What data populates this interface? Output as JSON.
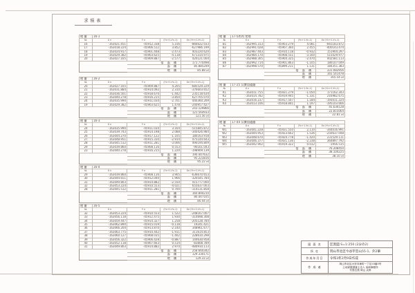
{
  "doc": {
    "title": "求積表"
  },
  "headers": {
    "lot": "地 番",
    "no": "№",
    "x": "X n",
    "y": "Y n",
    "diff": "(Yn+1-Yn-1)",
    "product": "Xn·(Yn+1-Yn-1)"
  },
  "summary_labels": {
    "double_area": "倍 面 積",
    "area": "面 積",
    "lot_area": "地 積"
  },
  "tables": [
    {
      "lot": "16-1",
      "rows": [
        [
          "16",
          "-163021.451",
          "-45912.338",
          "5.316",
          "-866622.033"
        ],
        [
          "17",
          "-163018.224",
          "-45906.512",
          "3.852",
          "-627986.199"
        ],
        [
          "18",
          "-163024.917",
          "-45901.448",
          "-2.473",
          "403220.620"
        ],
        [
          "19",
          "-163029.382",
          "-45903.625",
          "-4.118",
          "671314.975"
        ],
        [
          "20",
          "-163027.165",
          "-45909.887",
          "-2.577",
          "420121.004"
        ]
      ],
      "double_area": "171.770498",
      "area": "85.885249",
      "lot_area": "85.88 ㎡"
    },
    {
      "lot": "16-2",
      "rows": [
        [
          "20",
          "-163027.165",
          "-45909.887",
          "4.205",
          "-685529.229"
        ],
        [
          "21",
          "-163031.884",
          "-45914.092",
          "2.310",
          "-376603.652"
        ],
        [
          "22",
          "-163036.501",
          "-45918.670",
          "-1.442",
          "235118.634"
        ],
        [
          "23",
          "-163040.278",
          "-45916.215",
          "-3.850",
          "627705.070"
        ],
        [
          "24",
          "-163035.990",
          "-45911.034",
          "-2.701",
          "440360.209"
        ],
        [
          "19",
          "-163029.382",
          "-45903.625",
          "1.478",
          "-240957.427"
        ]
      ],
      "double_area": "243.129866",
      "area": "121.564933",
      "lot_area": "121.56 ㎡"
    },
    {
      "lot": "16-3",
      "rows": [
        [
          "24",
          "-163035.990",
          "-45911.034",
          "3.164",
          "-515845.872"
        ],
        [
          "25",
          "-163039.743",
          "-45914.198",
          "2.088",
          "-340426.984"
        ],
        [
          "26",
          "-163044.270",
          "-45917.122",
          "-1.105",
          "180163.918"
        ],
        [
          "27",
          "-163048.951",
          "-45915.310",
          "-2.914",
          "475144.643"
        ],
        [
          "28",
          "-163045.512",
          "-45911.281",
          "-3.006",
          "490194.809"
        ],
        [
          "29",
          "-163039.860",
          "-45908.116",
          "0.553",
          "-90161.043"
        ],
        [
          "23",
          "-163040.278",
          "-45916.215",
          "1.220",
          "-198909.139"
        ]
      ],
      "double_area": "190.447632",
      "area": "95.223816",
      "lot_area": "95.22 ㎡"
    },
    {
      "lot": "16-4",
      "rows": [
        [
          "29",
          "-163039.860",
          "-45908.116",
          "3.905",
          "-636670.653"
        ],
        [
          "30",
          "-163044.651",
          "-45912.040",
          "1.966",
          "-320545.784"
        ],
        [
          "31",
          "-163049.803",
          "-45914.882",
          "-2.550",
          "415777.000"
        ],
        [
          "32",
          "-163053.224",
          "-45910.553",
          "-4.021",
          "655637.003"
        ],
        [
          "28",
          "-163045.512",
          "-45911.281",
          "0.700",
          "-114131.858"
        ]
      ],
      "double_area": "160.894210",
      "area": "80.447105",
      "lot_area": "80.44 ㎡"
    },
    {
      "lot": "16-5",
      "rows": [
        [
          "32",
          "-163053.224",
          "-45910.553",
          "1.522",
          "-248167.007"
        ],
        [
          "33",
          "-163056.118",
          "-45912.475",
          "1.930",
          "-314698.308"
        ],
        [
          "34",
          "-163059.447",
          "-45914.327",
          "1.258",
          "-205128.784"
        ],
        [
          "35",
          "-163062.890",
          "-45915.019",
          "-0.118",
          "19241.421"
        ],
        [
          "36",
          "-163066.204",
          "-45913.870",
          "-2.140",
          "348961.677"
        ],
        [
          "37",
          "-163063.775",
          "-45910.442",
          "-1.911",
          "311614.853"
        ],
        [
          "38",
          "-163060.127",
          "-45908.035",
          "-1.402",
          "228610.298"
        ],
        [
          "39",
          "-163056.322",
          "-45906.428",
          "-0.887",
          "144630.958"
        ],
        [
          "40",
          "-163052.118",
          "-45907.663",
          "0.514",
          "-83808.789"
        ],
        [
          "31",
          "-163049.803",
          "-45914.882",
          "2.974",
          "-484910.113"
        ]
      ],
      "double_area": "258.660342",
      "area": "129.330171",
      "lot_area": "129.33 ㎡"
    },
    {
      "lot": "17-5の内 宅地",
      "rows": [
        [
          "B1",
          "-162995.313",
          "-45903.279",
          "4.081",
          "-665183.872"
        ],
        [
          "B2",
          "-162991.028",
          "-45907.360",
          "2.455",
          "-400143.474"
        ],
        [
          "B3",
          "-162987.443",
          "-45910.118",
          "-0.932",
          "151904.297"
        ],
        [
          "B4",
          "-162984.170",
          "-45908.551",
          "-3.160",
          "515029.977"
        ],
        [
          "B5",
          "-162988.305",
          "-45904.325",
          "-2.470",
          "402581.113"
        ],
        [
          "B6",
          "-162992.714",
          "-45901.863",
          "-1.105",
          "180107.049"
        ],
        [
          "B7",
          "-162998.570",
          "-45899.211",
          "1.131",
          "184351.383"
        ]
      ],
      "double_area": "331.082956",
      "area": "165.541478",
      "lot_area": "165.54 ㎡"
    },
    {
      "lot": "17-25 公衆用道路",
      "rows": [
        [
          "K1",
          "-163011.755",
          "-45921.279",
          "-1.050",
          "171162.343"
        ],
        [
          "K2",
          "-163014.782",
          "-45919.945",
          "-1.331",
          "216982.675"
        ],
        [
          "K3",
          "-163016.237",
          "-45917.507",
          "1.184",
          "-193011.224"
        ],
        [
          "K4",
          "-163013.106",
          "-45918.841",
          "1.197",
          "-195103.666"
        ]
      ],
      "double_area": "45.630128",
      "area": "22.815064",
      "lot_area": "22.81 ㎡"
    },
    {
      "lot": "17-44 公衆用道路",
      "rows": [
        [
          "W1",
          "-163041.228",
          "-45921.550",
          "2.110",
          "-344016.991"
        ],
        [
          "W2",
          "-163044.953",
          "-45923.662",
          "1.536",
          "-250637.048"
        ],
        [
          "W3",
          "-163048.670",
          "-45924.778",
          "-1.420",
          "231529.111"
        ],
        [
          "W4",
          "-163046.377",
          "-45921.136",
          "-2.238",
          "364897.792"
        ],
        [
          "W5",
          "-163042.902",
          "-45919.322",
          "0.012",
          "-1956.515"
        ]
      ],
      "double_area": "76.208450",
      "area": "38.104225",
      "lot_area": "38.10 ㎡"
    }
  ],
  "title_block": {
    "rows": [
      {
        "label": "図 面 名",
        "value": "区割図 S=1:250 (2分の2)"
      },
      {
        "label": "所  在",
        "value": "岡山市北区今谷字宮山55-1、外2筆"
      },
      {
        "label": "作成年月日",
        "value": "令和3年2月9日作成"
      },
      {
        "label": "作 成 者",
        "lines": [
          "岡山市北区大安寺東町一丁目16番5号",
          "土地家屋調査士法人 協和事務所",
          "代表社員 岡山 太郎"
        ]
      }
    ]
  }
}
